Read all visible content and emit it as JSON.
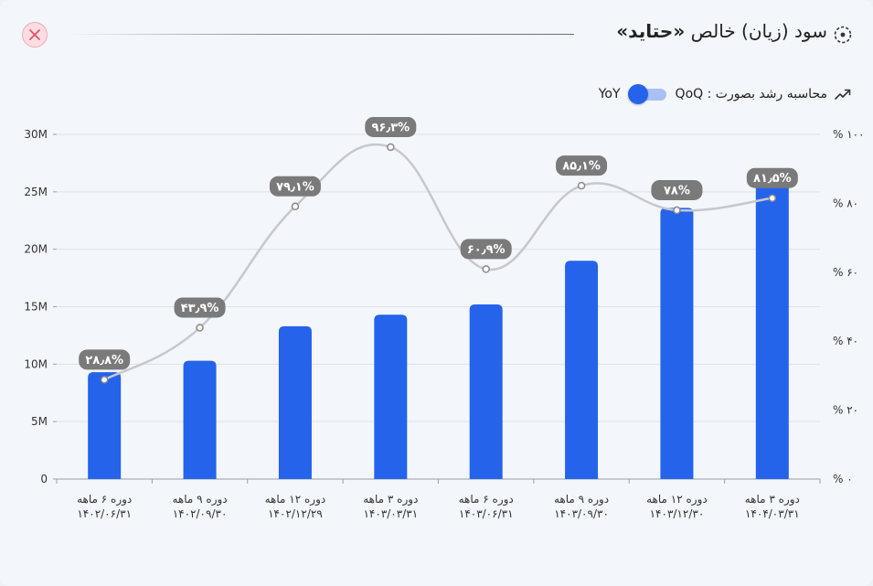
{
  "header": {
    "title_prefix": "سود (زیان) خالص",
    "title_company": "«حتاید»",
    "growth_label": "محاسبه رشد بصورت : QoQ",
    "toggle_alt_label": "YoY"
  },
  "colors": {
    "bar": "#2563eb",
    "line": "#c7c8cc",
    "label_bg": "#7a7a7a",
    "close": "#e0536c"
  },
  "chart_data": {
    "type": "bar",
    "categories": [
      [
        "دوره ۶ ماهه",
        "۱۴۰۲/۰۶/۳۱"
      ],
      [
        "دوره ۹ ماهه",
        "۱۴۰۲/۰۹/۳۰"
      ],
      [
        "دوره ۱۲ ماهه",
        "۱۴۰۲/۱۲/۲۹"
      ],
      [
        "دوره ۳ ماهه",
        "۱۴۰۳/۰۳/۳۱"
      ],
      [
        "دوره ۶ ماهه",
        "۱۴۰۳/۰۶/۳۱"
      ],
      [
        "دوره ۹ ماهه",
        "۱۴۰۳/۰۹/۳۰"
      ],
      [
        "دوره ۱۲ ماهه",
        "۱۴۰۳/۱۲/۳۰"
      ],
      [
        "دوره ۳ ماهه",
        "۱۴۰۴/۰۳/۳۱"
      ]
    ],
    "series": [
      {
        "type": "bar",
        "axis": "left",
        "values": [
          9.3,
          10.3,
          13.3,
          14.3,
          15.2,
          19.0,
          23.6,
          26.5
        ]
      },
      {
        "type": "line",
        "axis": "right",
        "values": [
          28.8,
          43.9,
          79.1,
          96.3,
          60.9,
          85.1,
          78,
          81.5
        ],
        "labels": [
          "۲۸٫۸%",
          "۴۳٫۹%",
          "۷۹٫۱%",
          "۹۶٫۳%",
          "۶۰٫۹%",
          "۸۵٫۱%",
          "۷۸%",
          "۸۱٫۵%"
        ]
      }
    ],
    "ylim": [
      0,
      30
    ],
    "y_ticks": [
      0,
      5,
      10,
      15,
      20,
      25,
      30
    ],
    "y_tick_labels": [
      "0",
      "5M",
      "10M",
      "15M",
      "20M",
      "25M",
      "30M"
    ],
    "y2lim": [
      0,
      100
    ],
    "y2_ticks": [
      0,
      20,
      40,
      60,
      80,
      100
    ],
    "y2_tick_labels": [
      "% ۰",
      "% ۲۰",
      "% ۴۰",
      "% ۶۰",
      "% ۸۰",
      "% ۱۰۰"
    ],
    "grid": true
  }
}
